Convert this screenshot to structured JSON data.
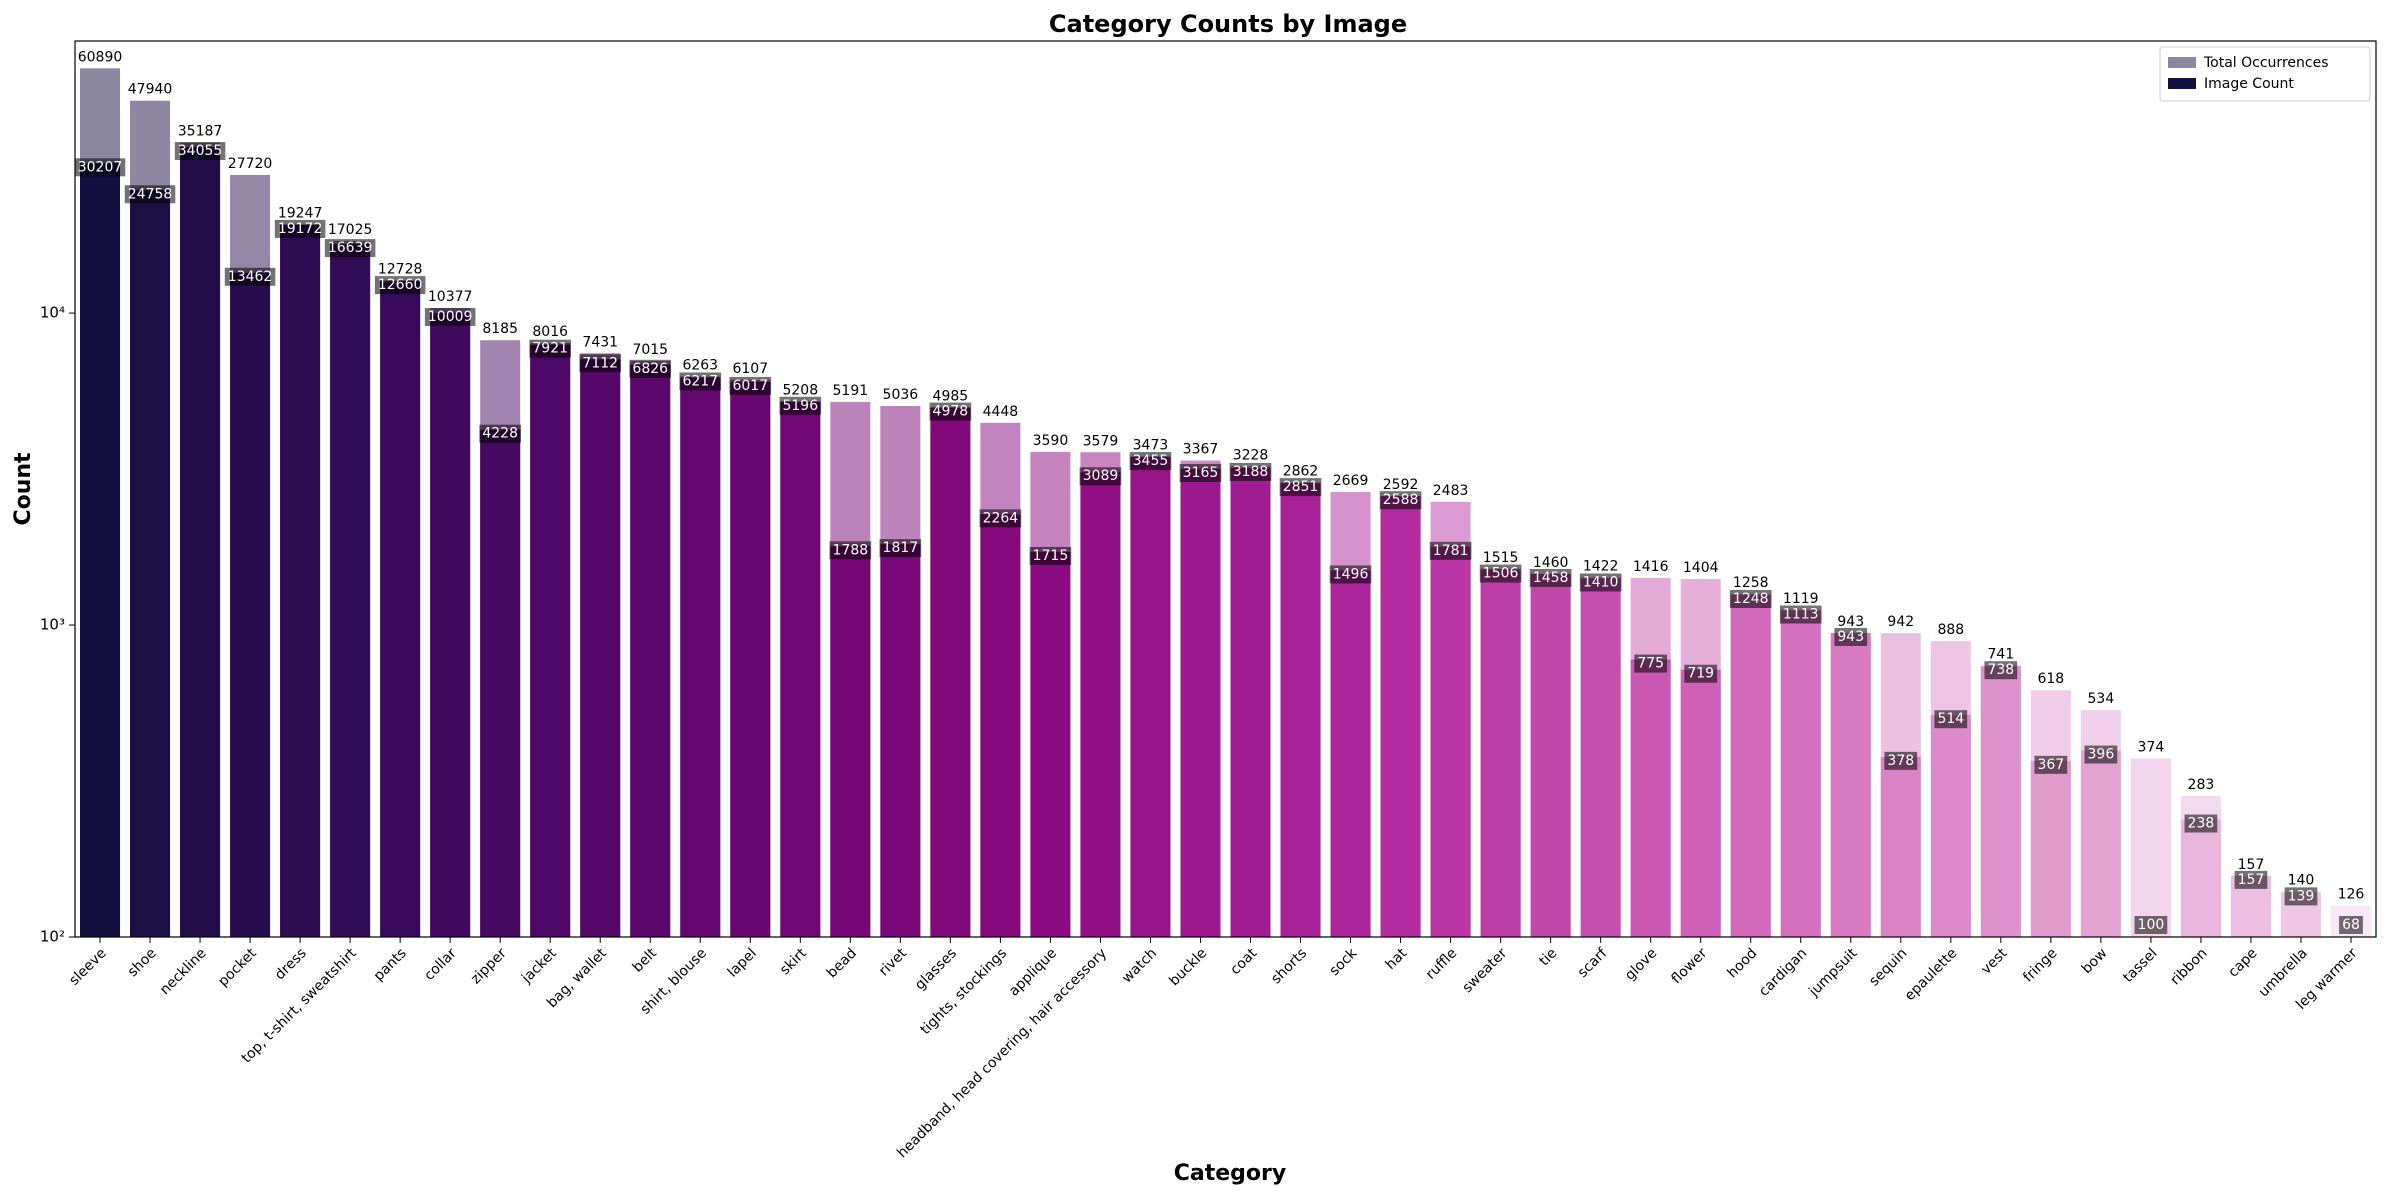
{
  "chart_data": {
    "type": "overlap-bar",
    "title": "Category Counts by Image",
    "x_label": "Category",
    "y_label": "Count",
    "log_scale": true,
    "legend": "upper right",
    "palette": [
      "#15103f",
      "#3b0a5e",
      "#6a0670",
      "#8d0a80",
      "#b22a9e",
      "#cf62b8",
      "#e097cd",
      "#f2d0ea"
    ],
    "categories": [
      "sleeve",
      "shoe",
      "neckline",
      "pocket",
      "dress",
      "top, t-shirt, sweatshirt",
      "pants",
      "collar",
      "zipper",
      "jacket",
      "bag, wallet",
      "belt",
      "shirt, blouse",
      "lapel",
      "skirt",
      "bead",
      "rivet",
      "glasses",
      "tights, stockings",
      "applique",
      "headband, head covering, hair accessory",
      "watch",
      "buckle",
      "coat",
      "shorts",
      "sock",
      "hat",
      "ruffle",
      "sweater",
      "tie",
      "scarf",
      "glove",
      "flower",
      "hood",
      "cardigan",
      "jumpsuit",
      "sequin",
      "epaulette",
      "vest",
      "fringe",
      "bow",
      "tassel",
      "ribbon",
      "cape",
      "umbrella",
      "leg warmer"
    ],
    "series": [
      {
        "name": "Total Occurrences",
        "color": "#15103f",
        "alpha": 0.5,
        "values": [
          60890,
          47940,
          35187,
          27720,
          19247,
          17025,
          12728,
          10377,
          8185,
          8016,
          7431,
          7015,
          6263,
          6107,
          5208,
          5191,
          5036,
          4985,
          4448,
          3590,
          3579,
          3473,
          3367,
          3228,
          2862,
          2669,
          2592,
          2483,
          1515,
          1460,
          1422,
          1416,
          1404,
          1258,
          1119,
          943,
          942,
          888,
          741,
          618,
          534,
          374,
          283,
          157,
          140,
          126
        ]
      },
      {
        "name": "Image Count",
        "color": "#15103f",
        "alpha": 1,
        "values": [
          30207,
          24758,
          34055,
          13462,
          19172,
          16639,
          12660,
          10009,
          4228,
          7921,
          7112,
          6826,
          6217,
          6017,
          5196,
          1788,
          1817,
          4978,
          2264,
          1715,
          3089,
          3455,
          3165,
          3188,
          2851,
          1496,
          2588,
          1781,
          1506,
          1458,
          1410,
          775,
          719,
          1248,
          1113,
          943,
          378,
          514,
          738,
          367,
          396,
          100,
          238,
          157,
          139,
          68
        ]
      }
    ],
    "ylim": [
      100,
      74500
    ],
    "yticks": [
      {
        "value": 100,
        "label": "10²"
      },
      {
        "value": 1000,
        "label": "10³"
      },
      {
        "value": 10000,
        "label": "10⁴"
      }
    ]
  }
}
